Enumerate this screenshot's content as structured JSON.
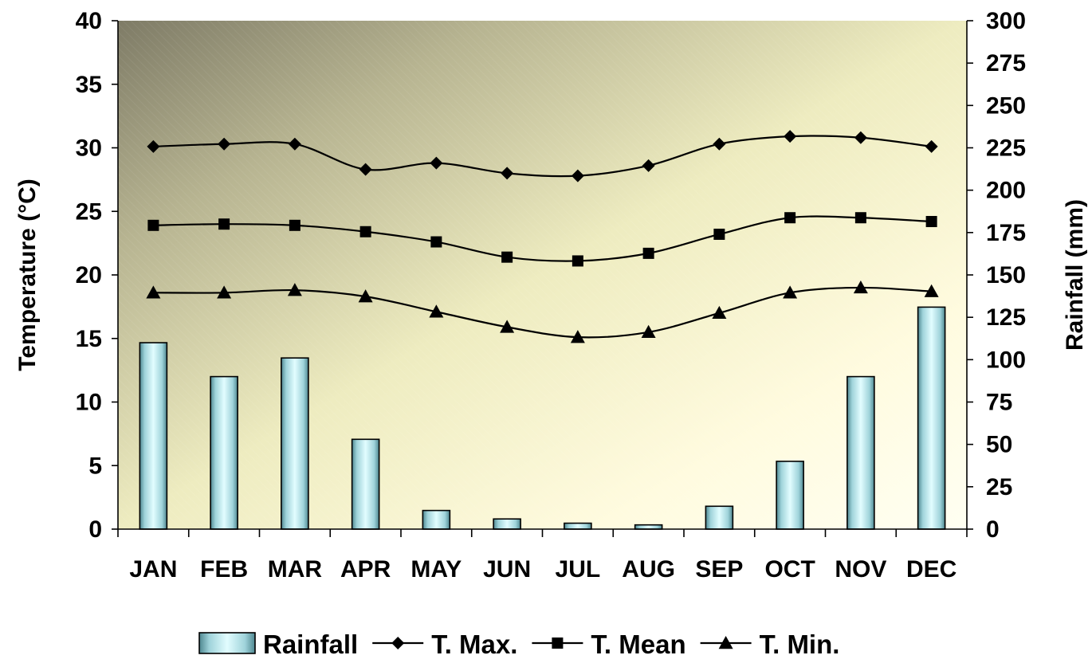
{
  "chart_data": {
    "type": "bar+line",
    "categories": [
      "JAN",
      "FEB",
      "MAR",
      "APR",
      "MAY",
      "JUN",
      "JUL",
      "AUG",
      "SEP",
      "OCT",
      "NOV",
      "DEC"
    ],
    "bar_series": {
      "name": "Rainfall",
      "axis": "right",
      "values": [
        110,
        90,
        101,
        53,
        11,
        6,
        3.5,
        2.5,
        13.5,
        40,
        90,
        131
      ]
    },
    "line_series": [
      {
        "name": "T. Max.",
        "marker": "diamond",
        "axis": "left",
        "values": [
          30.1,
          30.3,
          30.3,
          28.3,
          28.8,
          28.0,
          27.8,
          28.6,
          30.3,
          30.9,
          30.8,
          30.1
        ]
      },
      {
        "name": "T. Mean",
        "marker": "square",
        "axis": "left",
        "values": [
          23.9,
          24.0,
          23.9,
          23.4,
          22.6,
          21.4,
          21.1,
          21.7,
          23.2,
          24.5,
          24.5,
          24.2
        ]
      },
      {
        "name": "T. Min.",
        "marker": "triangle",
        "axis": "left",
        "values": [
          18.6,
          18.6,
          18.8,
          18.3,
          17.1,
          15.9,
          15.1,
          15.5,
          17.0,
          18.6,
          19.0,
          18.7
        ]
      }
    ],
    "y_left": {
      "label": "Temperature (°C)",
      "min": 0,
      "max": 40,
      "step": 5,
      "ticks": [
        "0",
        "5",
        "10",
        "15",
        "20",
        "25",
        "30",
        "35",
        "40"
      ]
    },
    "y_right": {
      "label": "Rainfall (mm)",
      "min": 0,
      "max": 300,
      "step": 25,
      "ticks": [
        "0",
        "25",
        "50",
        "75",
        "100",
        "125",
        "150",
        "175",
        "200",
        "225",
        "250",
        "275",
        "300"
      ]
    },
    "grid": false,
    "legend_position": "bottom",
    "colors": {
      "bar_light": "#d8fbff",
      "bar_dark": "#4e8790",
      "line": "#000000",
      "bg_dark": "#7e7b66",
      "bg_light": "#fffff0"
    }
  }
}
